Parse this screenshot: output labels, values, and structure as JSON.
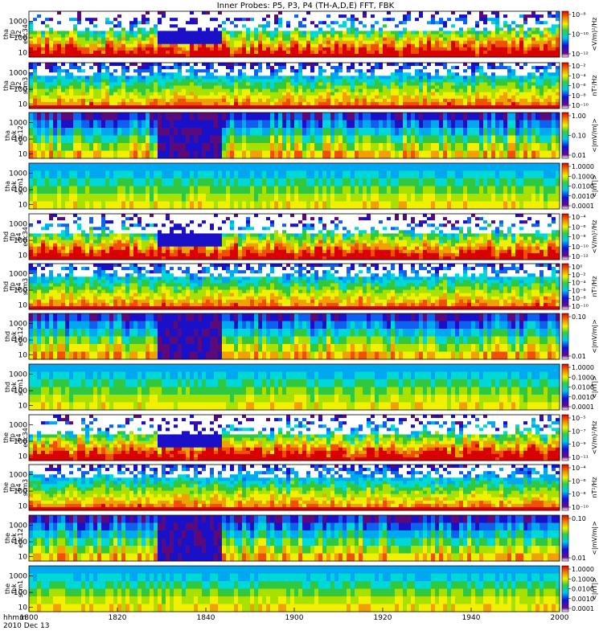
{
  "chart_data": {
    "type": "heatmap",
    "title": "Inner Probes: P5, P3, P4 (TH-A,D,E) FFT, FBK",
    "x_ticks": [
      "1800",
      "1820",
      "1840",
      "1900",
      "1920",
      "1940",
      "2000"
    ],
    "x_label_top": "hhmm",
    "x_label_bottom": "2010 Dec 13",
    "panels": [
      {
        "ylabel": [
          "tha",
          "ffp",
          "32",
          "edc34"
        ],
        "y_ticks": [
          "1000",
          "100",
          "10"
        ],
        "cb_label": "<V/m)²/Hz",
        "cb_ticks": [
          "10⁻⁸",
          "10⁻¹⁰",
          "10⁻¹²"
        ],
        "kind": "ffp_e"
      },
      {
        "ylabel": [
          "tha",
          "ffp",
          "32",
          "scm3"
        ],
        "y_ticks": [
          "1000",
          "100",
          "10"
        ],
        "cb_label": "nT²/Hz",
        "cb_ticks": [
          "10⁻²",
          "10⁻⁴",
          "10⁻⁶",
          "10⁻⁸",
          "10⁻¹⁰"
        ],
        "kind": "ffp_b"
      },
      {
        "ylabel": [
          "tha",
          "fbk",
          "edc12"
        ],
        "y_ticks": [
          "1000",
          "100",
          "10"
        ],
        "cb_label": "<|mV/m|>",
        "cb_ticks": [
          "1.00",
          "0.10",
          "0.01"
        ],
        "kind": "fbk_e"
      },
      {
        "ylabel": [
          "tha",
          "fbk",
          "scm1"
        ],
        "y_ticks": [
          "1000",
          "100",
          "10"
        ],
        "cb_label": "<|nT|>",
        "cb_ticks": [
          "1.0000",
          "0.1000",
          "0.0100",
          "0.0010",
          "0.0001"
        ],
        "kind": "fbk_b"
      },
      {
        "ylabel": [
          "thd",
          "ffp",
          "64",
          "edc34"
        ],
        "y_ticks": [
          "1000",
          "100",
          "10"
        ],
        "cb_label": "<V/m)²/Hz",
        "cb_ticks": [
          "10⁻⁴",
          "10⁻⁶",
          "10⁻⁸",
          "10⁻¹⁰",
          "10⁻¹²"
        ],
        "kind": "ffp_e"
      },
      {
        "ylabel": [
          "thd",
          "ffp",
          "64",
          "scm3"
        ],
        "y_ticks": [
          "1000",
          "100",
          "10"
        ],
        "cb_label": "nT²/Hz",
        "cb_ticks": [
          "10⁰",
          "10⁻²",
          "10⁻⁴",
          "10⁻⁶",
          "10⁻⁸",
          "10⁻¹⁰"
        ],
        "kind": "ffp_b"
      },
      {
        "ylabel": [
          "thd",
          "fbk",
          "edc12"
        ],
        "y_ticks": [
          "1000",
          "100",
          "10"
        ],
        "cb_label": "<|mV/m|>",
        "cb_ticks": [
          "0.10",
          "0.01"
        ],
        "kind": "fbk_e"
      },
      {
        "ylabel": [
          "thd",
          "fbk",
          "scm1"
        ],
        "y_ticks": [
          "1000",
          "100",
          "10"
        ],
        "cb_label": "<|nT|>",
        "cb_ticks": [
          "1.0000",
          "0.1000",
          "0.0100",
          "0.0010",
          "0.0001"
        ],
        "kind": "fbk_b"
      },
      {
        "ylabel": [
          "the",
          "ffp",
          "64",
          "edc34"
        ],
        "y_ticks": [
          "1000",
          "100",
          "10"
        ],
        "cb_label": "<V/m)²/Hz",
        "cb_ticks": [
          "10⁻⁵",
          "10⁻⁷",
          "10⁻⁹",
          "10⁻¹¹"
        ],
        "kind": "ffp_e"
      },
      {
        "ylabel": [
          "the",
          "ffp",
          "64",
          "scm3"
        ],
        "y_ticks": [
          "1000",
          "100",
          "10"
        ],
        "cb_label": "nT²/Hz",
        "cb_ticks": [
          "10⁻⁴",
          "10⁻⁶",
          "10⁻⁸",
          "10⁻¹⁰"
        ],
        "kind": "ffp_b"
      },
      {
        "ylabel": [
          "the",
          "fbk",
          "edc12"
        ],
        "y_ticks": [
          "1000",
          "100",
          "10"
        ],
        "cb_label": "<|mV/m|>",
        "cb_ticks": [
          "0.10",
          "0.01"
        ],
        "kind": "fbk_e"
      },
      {
        "ylabel": [
          "the",
          "fbk",
          "scm1"
        ],
        "y_ticks": [
          "1000",
          "100",
          "10"
        ],
        "cb_label": "<|nT|>",
        "cb_ticks": [
          "1.0000",
          "0.1000",
          "0.0100",
          "0.0010",
          "0.0001"
        ],
        "kind": "fbk_b"
      }
    ]
  }
}
